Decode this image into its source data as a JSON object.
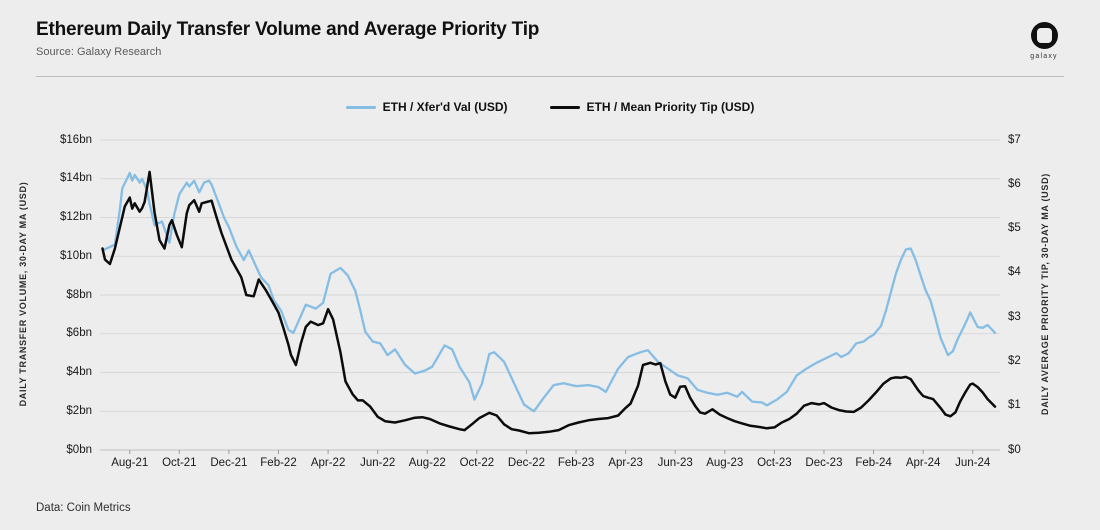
{
  "header": {
    "title": "Ethereum Daily Transfer Volume and Average Priority Tip",
    "source": "Source: Galaxy Research",
    "logo_word": "galaxy"
  },
  "footer": {
    "data_note": "Data: Coin Metrics"
  },
  "colors": {
    "background": "#ededed",
    "grid": "#d7d7d7",
    "grid_zero": "#c0c0c0",
    "blue_series": "#85bde4",
    "black_series": "#0c0c0c"
  },
  "legend": {
    "items": [
      {
        "label": "ETH / Xfer'd Val (USD)",
        "color": "#85bde4"
      },
      {
        "label": "ETH / Mean Priority Tip (USD)",
        "color": "#0c0c0c"
      }
    ]
  },
  "chart_data": {
    "type": "line",
    "title": "Ethereum Daily Transfer Volume and Average Priority Tip",
    "x_unit": "months since Aug-2021 (30-day moving averages, daily data)",
    "x_domain": [
      -1.2,
      35.1
    ],
    "x_axis": {
      "tick_months": [
        0,
        2,
        4,
        6,
        8,
        10,
        12,
        14,
        16,
        18,
        20,
        22,
        24,
        26,
        28,
        30,
        32,
        34
      ],
      "tick_labels": [
        "Aug-21",
        "Oct-21",
        "Dec-21",
        "Feb-22",
        "Apr-22",
        "Jun-22",
        "Aug-22",
        "Oct-22",
        "Dec-22",
        "Feb-23",
        "Apr-23",
        "Jun-23",
        "Aug-23",
        "Oct-23",
        "Dec-23",
        "Feb-24",
        "Apr-24",
        "Jun-24"
      ]
    },
    "left_axis": {
      "label": "DAILY TRANSFER VOLUME, 30-DAY MA (USD)",
      "range": [
        0,
        16
      ],
      "tick_step": 2,
      "tick_labels": [
        "$0bn",
        "$2bn",
        "$4bn",
        "$6bn",
        "$8bn",
        "$10bn",
        "$12bn",
        "$14bn",
        "$16bn"
      ]
    },
    "right_axis": {
      "label": "DAILY AVERAGE PRIORITY TIP, 30-DAY MA (USD)",
      "range": [
        0,
        7
      ],
      "tick_step": 1,
      "tick_labels": [
        "$0",
        "$1",
        "$2",
        "$3",
        "$4",
        "$5",
        "$6",
        "$7"
      ]
    },
    "grid": true,
    "legend_position": "top-center",
    "series": [
      {
        "name": "ETH / Xfer'd Val (USD)",
        "axis": "left",
        "unit": "USD bn",
        "color": "#85bde4",
        "stroke_width": 2.3,
        "points": [
          [
            -1.1,
            10.3
          ],
          [
            -0.6,
            10.6
          ],
          [
            -0.4,
            12.4
          ],
          [
            -0.3,
            13.5
          ],
          [
            0,
            14.3
          ],
          [
            0.1,
            13.9
          ],
          [
            0.2,
            14.2
          ],
          [
            0.4,
            13.8
          ],
          [
            0.5,
            14.0
          ],
          [
            0.7,
            13.4
          ],
          [
            0.8,
            12.7
          ],
          [
            1.0,
            11.6
          ],
          [
            1.3,
            11.8
          ],
          [
            1.6,
            10.7
          ],
          [
            1.8,
            12.2
          ],
          [
            2.0,
            13.2
          ],
          [
            2.3,
            13.8
          ],
          [
            2.4,
            13.6
          ],
          [
            2.6,
            13.9
          ],
          [
            2.8,
            13.3
          ],
          [
            3.0,
            13.8
          ],
          [
            3.2,
            13.9
          ],
          [
            3.3,
            13.7
          ],
          [
            3.6,
            12.7
          ],
          [
            3.8,
            12.0
          ],
          [
            4.0,
            11.5
          ],
          [
            4.3,
            10.5
          ],
          [
            4.6,
            9.8
          ],
          [
            4.8,
            10.3
          ],
          [
            5.1,
            9.45
          ],
          [
            5.3,
            8.9
          ],
          [
            5.6,
            8.5
          ],
          [
            5.8,
            7.75
          ],
          [
            6.1,
            7.2
          ],
          [
            6.4,
            6.2
          ],
          [
            6.6,
            6.05
          ],
          [
            7.1,
            7.5
          ],
          [
            7.5,
            7.3
          ],
          [
            7.8,
            7.6
          ],
          [
            8.1,
            9.1
          ],
          [
            8.5,
            9.4
          ],
          [
            8.8,
            9.0
          ],
          [
            9.1,
            8.2
          ],
          [
            9.3,
            7.2
          ],
          [
            9.5,
            6.1
          ],
          [
            9.8,
            5.6
          ],
          [
            10.1,
            5.5
          ],
          [
            10.4,
            4.9
          ],
          [
            10.7,
            5.2
          ],
          [
            11.1,
            4.4
          ],
          [
            11.5,
            3.95
          ],
          [
            11.9,
            4.1
          ],
          [
            12.2,
            4.3
          ],
          [
            12.7,
            5.4
          ],
          [
            13.0,
            5.2
          ],
          [
            13.3,
            4.3
          ],
          [
            13.7,
            3.5
          ],
          [
            13.9,
            2.6
          ],
          [
            14.2,
            3.4
          ],
          [
            14.5,
            4.95
          ],
          [
            14.7,
            5.05
          ],
          [
            15.1,
            4.55
          ],
          [
            15.5,
            3.45
          ],
          [
            15.9,
            2.35
          ],
          [
            16.3,
            2.0
          ],
          [
            16.7,
            2.7
          ],
          [
            17.1,
            3.35
          ],
          [
            17.5,
            3.45
          ],
          [
            18.0,
            3.3
          ],
          [
            18.5,
            3.35
          ],
          [
            18.9,
            3.25
          ],
          [
            19.2,
            3.0
          ],
          [
            19.7,
            4.2
          ],
          [
            20.1,
            4.8
          ],
          [
            20.6,
            5.05
          ],
          [
            20.9,
            5.15
          ],
          [
            21.3,
            4.55
          ],
          [
            21.7,
            4.2
          ],
          [
            22.1,
            3.85
          ],
          [
            22.5,
            3.7
          ],
          [
            22.9,
            3.1
          ],
          [
            23.3,
            2.95
          ],
          [
            23.7,
            2.85
          ],
          [
            24.1,
            2.95
          ],
          [
            24.5,
            2.75
          ],
          [
            24.7,
            3.0
          ],
          [
            25.1,
            2.5
          ],
          [
            25.5,
            2.45
          ],
          [
            25.7,
            2.3
          ],
          [
            26.1,
            2.6
          ],
          [
            26.5,
            3.0
          ],
          [
            26.9,
            3.85
          ],
          [
            27.3,
            4.2
          ],
          [
            27.7,
            4.5
          ],
          [
            28.1,
            4.75
          ],
          [
            28.5,
            5.0
          ],
          [
            28.7,
            4.8
          ],
          [
            29.0,
            5.0
          ],
          [
            29.3,
            5.5
          ],
          [
            29.6,
            5.6
          ],
          [
            29.8,
            5.8
          ],
          [
            30.0,
            5.95
          ],
          [
            30.3,
            6.4
          ],
          [
            30.5,
            7.2
          ],
          [
            30.7,
            8.15
          ],
          [
            30.9,
            9.1
          ],
          [
            31.1,
            9.8
          ],
          [
            31.3,
            10.35
          ],
          [
            31.5,
            10.4
          ],
          [
            31.7,
            9.8
          ],
          [
            31.9,
            9.0
          ],
          [
            32.1,
            8.25
          ],
          [
            32.3,
            7.7
          ],
          [
            32.5,
            6.8
          ],
          [
            32.7,
            5.8
          ],
          [
            33.0,
            4.9
          ],
          [
            33.2,
            5.1
          ],
          [
            33.4,
            5.75
          ],
          [
            33.6,
            6.25
          ],
          [
            33.8,
            6.8
          ],
          [
            33.9,
            7.1
          ],
          [
            34.0,
            6.85
          ],
          [
            34.2,
            6.35
          ],
          [
            34.4,
            6.3
          ],
          [
            34.6,
            6.45
          ],
          [
            34.9,
            6.05
          ]
        ]
      },
      {
        "name": "ETH / Mean Priority Tip (USD)",
        "axis": "right",
        "unit": "USD",
        "color": "#0c0c0c",
        "stroke_width": 2.5,
        "points": [
          [
            -1.1,
            4.55
          ],
          [
            -1.0,
            4.3
          ],
          [
            -0.8,
            4.2
          ],
          [
            -0.6,
            4.55
          ],
          [
            -0.2,
            5.5
          ],
          [
            0,
            5.7
          ],
          [
            0.1,
            5.45
          ],
          [
            0.2,
            5.57
          ],
          [
            0.4,
            5.38
          ],
          [
            0.5,
            5.46
          ],
          [
            0.6,
            5.6
          ],
          [
            0.8,
            6.28
          ],
          [
            1.0,
            5.37
          ],
          [
            1.2,
            4.74
          ],
          [
            1.4,
            4.55
          ],
          [
            1.6,
            5.08
          ],
          [
            1.7,
            5.19
          ],
          [
            1.9,
            4.85
          ],
          [
            2.1,
            4.58
          ],
          [
            2.3,
            5.35
          ],
          [
            2.4,
            5.53
          ],
          [
            2.6,
            5.64
          ],
          [
            2.8,
            5.38
          ],
          [
            2.9,
            5.57
          ],
          [
            3.1,
            5.6
          ],
          [
            3.3,
            5.63
          ],
          [
            3.5,
            5.26
          ],
          [
            3.7,
            4.9
          ],
          [
            4.1,
            4.3
          ],
          [
            4.5,
            3.9
          ],
          [
            4.7,
            3.5
          ],
          [
            5.0,
            3.47
          ],
          [
            5.2,
            3.85
          ],
          [
            5.5,
            3.6
          ],
          [
            5.7,
            3.4
          ],
          [
            6.0,
            3.1
          ],
          [
            6.2,
            2.75
          ],
          [
            6.4,
            2.38
          ],
          [
            6.5,
            2.15
          ],
          [
            6.7,
            1.92
          ],
          [
            6.9,
            2.4
          ],
          [
            7.1,
            2.78
          ],
          [
            7.3,
            2.9
          ],
          [
            7.6,
            2.82
          ],
          [
            7.8,
            2.86
          ],
          [
            8.0,
            3.18
          ],
          [
            8.2,
            2.95
          ],
          [
            8.5,
            2.2
          ],
          [
            8.7,
            1.55
          ],
          [
            9.0,
            1.25
          ],
          [
            9.2,
            1.12
          ],
          [
            9.4,
            1.12
          ],
          [
            9.7,
            0.98
          ],
          [
            10.0,
            0.75
          ],
          [
            10.3,
            0.65
          ],
          [
            10.7,
            0.62
          ],
          [
            11.1,
            0.67
          ],
          [
            11.5,
            0.73
          ],
          [
            11.8,
            0.74
          ],
          [
            12.1,
            0.7
          ],
          [
            12.5,
            0.6
          ],
          [
            12.9,
            0.53
          ],
          [
            13.3,
            0.47
          ],
          [
            13.5,
            0.45
          ],
          [
            13.8,
            0.58
          ],
          [
            14.1,
            0.72
          ],
          [
            14.5,
            0.84
          ],
          [
            14.8,
            0.78
          ],
          [
            15.1,
            0.58
          ],
          [
            15.4,
            0.47
          ],
          [
            15.7,
            0.44
          ],
          [
            16.1,
            0.38
          ],
          [
            16.5,
            0.39
          ],
          [
            16.9,
            0.41
          ],
          [
            17.3,
            0.45
          ],
          [
            17.7,
            0.56
          ],
          [
            18.1,
            0.62
          ],
          [
            18.5,
            0.67
          ],
          [
            18.9,
            0.7
          ],
          [
            19.3,
            0.72
          ],
          [
            19.7,
            0.78
          ],
          [
            20.0,
            0.95
          ],
          [
            20.2,
            1.05
          ],
          [
            20.5,
            1.45
          ],
          [
            20.7,
            1.92
          ],
          [
            21.0,
            1.97
          ],
          [
            21.2,
            1.93
          ],
          [
            21.4,
            1.96
          ],
          [
            21.6,
            1.55
          ],
          [
            21.8,
            1.25
          ],
          [
            22.0,
            1.18
          ],
          [
            22.2,
            1.43
          ],
          [
            22.4,
            1.44
          ],
          [
            22.6,
            1.18
          ],
          [
            22.8,
            1.0
          ],
          [
            23.0,
            0.85
          ],
          [
            23.2,
            0.82
          ],
          [
            23.5,
            0.92
          ],
          [
            23.8,
            0.8
          ],
          [
            24.1,
            0.72
          ],
          [
            24.4,
            0.65
          ],
          [
            24.7,
            0.6
          ],
          [
            25.0,
            0.55
          ],
          [
            25.4,
            0.52
          ],
          [
            25.7,
            0.49
          ],
          [
            26.0,
            0.51
          ],
          [
            26.3,
            0.62
          ],
          [
            26.6,
            0.7
          ],
          [
            26.9,
            0.82
          ],
          [
            27.2,
            1.0
          ],
          [
            27.5,
            1.06
          ],
          [
            27.8,
            1.03
          ],
          [
            28.0,
            1.06
          ],
          [
            28.3,
            0.96
          ],
          [
            28.6,
            0.9
          ],
          [
            28.9,
            0.87
          ],
          [
            29.2,
            0.86
          ],
          [
            29.5,
            0.96
          ],
          [
            29.8,
            1.12
          ],
          [
            30.1,
            1.3
          ],
          [
            30.4,
            1.5
          ],
          [
            30.7,
            1.62
          ],
          [
            30.9,
            1.64
          ],
          [
            31.1,
            1.63
          ],
          [
            31.3,
            1.65
          ],
          [
            31.5,
            1.6
          ],
          [
            31.8,
            1.35
          ],
          [
            32.0,
            1.22
          ],
          [
            32.2,
            1.18
          ],
          [
            32.4,
            1.15
          ],
          [
            32.7,
            0.95
          ],
          [
            32.9,
            0.8
          ],
          [
            33.1,
            0.76
          ],
          [
            33.3,
            0.85
          ],
          [
            33.5,
            1.1
          ],
          [
            33.7,
            1.3
          ],
          [
            33.9,
            1.48
          ],
          [
            34.0,
            1.5
          ],
          [
            34.2,
            1.42
          ],
          [
            34.4,
            1.3
          ],
          [
            34.6,
            1.15
          ],
          [
            34.9,
            0.98
          ]
        ]
      }
    ]
  }
}
